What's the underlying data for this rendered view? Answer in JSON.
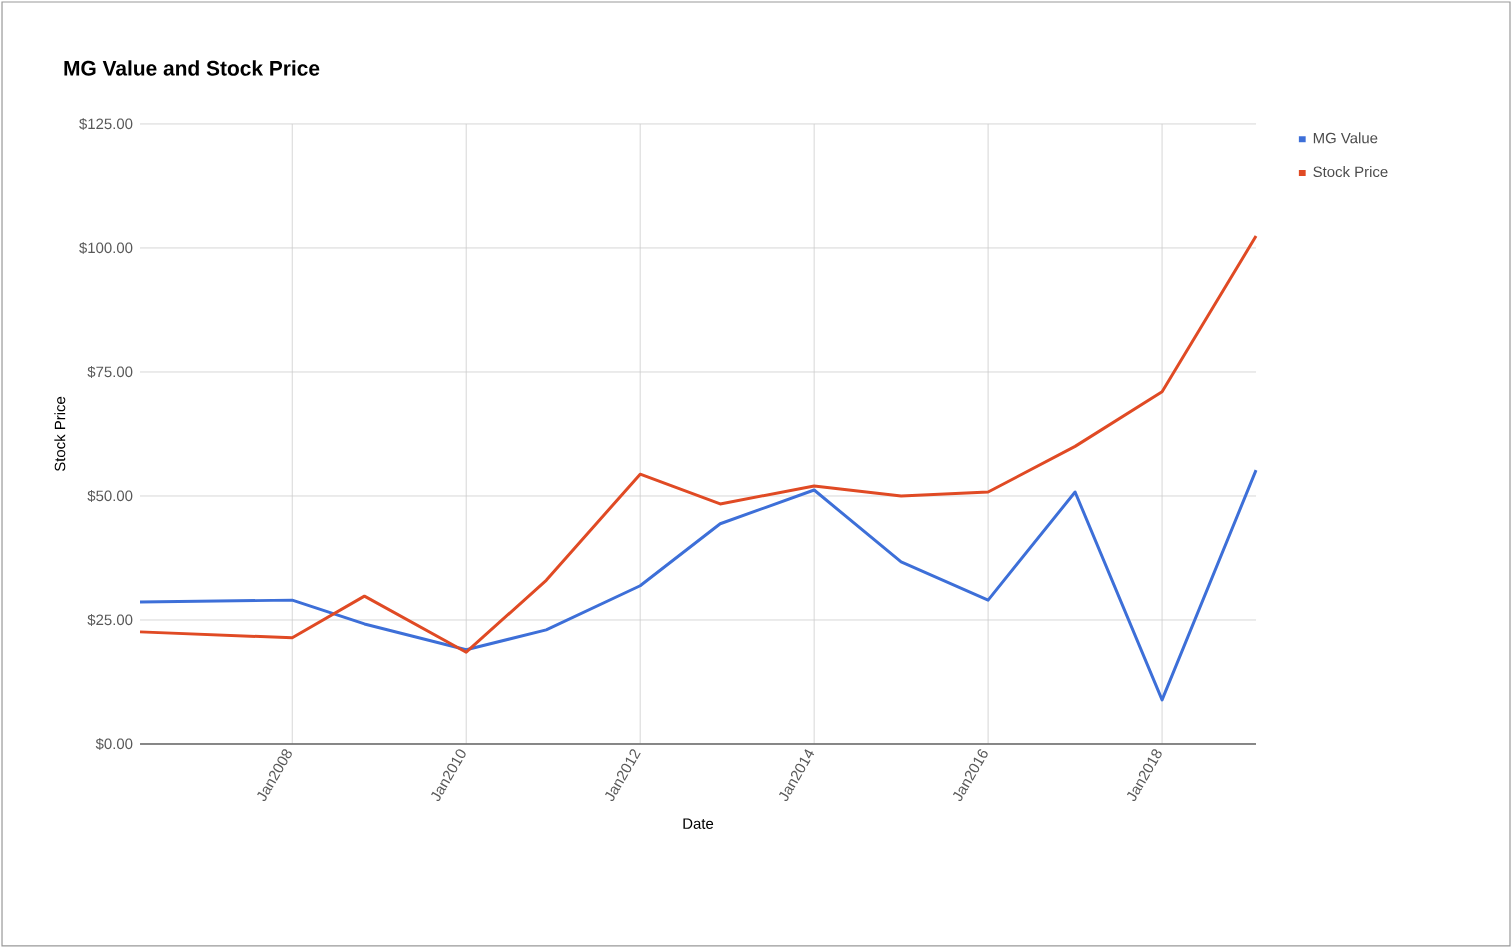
{
  "chart_data": {
    "type": "line",
    "title": "MG Value and Stock Price",
    "xlabel": "Date",
    "ylabel": "Stock Price",
    "x": [
      "2006-04",
      "2008-01",
      "2008-11",
      "2010-01",
      "2010-12",
      "2012-01",
      "2012-12",
      "2014-01",
      "2015-01",
      "2016-01",
      "2017-01",
      "2018-01",
      "2019-02"
    ],
    "series": [
      {
        "name": "MG Value",
        "color": "#3d6fd8",
        "values": [
          28.6,
          29,
          24.2,
          19,
          23,
          31.9,
          44.4,
          51.2,
          36.7,
          29,
          50.8,
          8.9,
          55.2
        ]
      },
      {
        "name": "Stock Price",
        "color": "#e04a24",
        "values": [
          22.6,
          21.4,
          29.8,
          18.5,
          33,
          54.4,
          48.4,
          52,
          50,
          50.8,
          60,
          71,
          102.4
        ]
      }
    ],
    "xlim": [
      "2006-04",
      "2019-02"
    ],
    "xticks": [
      {
        "value": "2008-01",
        "label": "Jan2008"
      },
      {
        "value": "2010-01",
        "label": "Jan2010"
      },
      {
        "value": "2012-01",
        "label": "Jan2012"
      },
      {
        "value": "2014-01",
        "label": "Jan2014"
      },
      {
        "value": "2016-01",
        "label": "Jan2016"
      },
      {
        "value": "2018-01",
        "label": "Jan2018"
      }
    ],
    "ylim": [
      0,
      125
    ],
    "yticks": [
      {
        "value": 0,
        "label": "$0.00"
      },
      {
        "value": 25,
        "label": "$25.00"
      },
      {
        "value": 50,
        "label": "$50.00"
      },
      {
        "value": 75,
        "label": "$75.00"
      },
      {
        "value": 100,
        "label": "$100.00"
      },
      {
        "value": 125,
        "label": "$125.00"
      }
    ],
    "grid": true,
    "legend": "top right",
    "marker": "none",
    "line_style": "solid"
  }
}
